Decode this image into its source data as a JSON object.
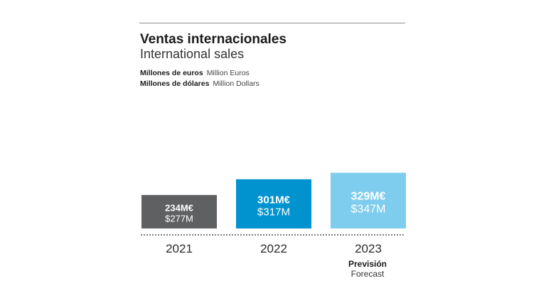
{
  "header": {
    "title_es": "Ventas internacionales",
    "title_en": "International sales"
  },
  "units": {
    "eur_es": "Millones de euros",
    "eur_en": "Million Euros",
    "usd_es": "Millones de dólares",
    "usd_en": "Million Dollars"
  },
  "forecast": {
    "label_es": "Previsión",
    "label_en": "Forecast"
  },
  "colors": {
    "bar_2021": "#5f6062",
    "bar_2022": "#0093d0",
    "bar_2023": "#7fcdee",
    "rule": "#8c8c8c",
    "baseline": "#333333"
  },
  "chart_data": {
    "type": "bar",
    "title": "Ventas internacionales / International sales",
    "categories": [
      "2021",
      "2022",
      "2023"
    ],
    "series": [
      {
        "name": "Millones de euros",
        "unit": "M€",
        "values": [
          234,
          301,
          329
        ],
        "labels": [
          "234M€",
          "301M€",
          "329M€"
        ]
      },
      {
        "name": "Million Dollars",
        "unit": "$M",
        "values": [
          277,
          317,
          347
        ],
        "labels": [
          "$277M",
          "$317M",
          "$347M"
        ]
      }
    ],
    "forecast_categories": [
      "2023"
    ],
    "xlabel": "",
    "ylabel": "",
    "grid": false
  }
}
